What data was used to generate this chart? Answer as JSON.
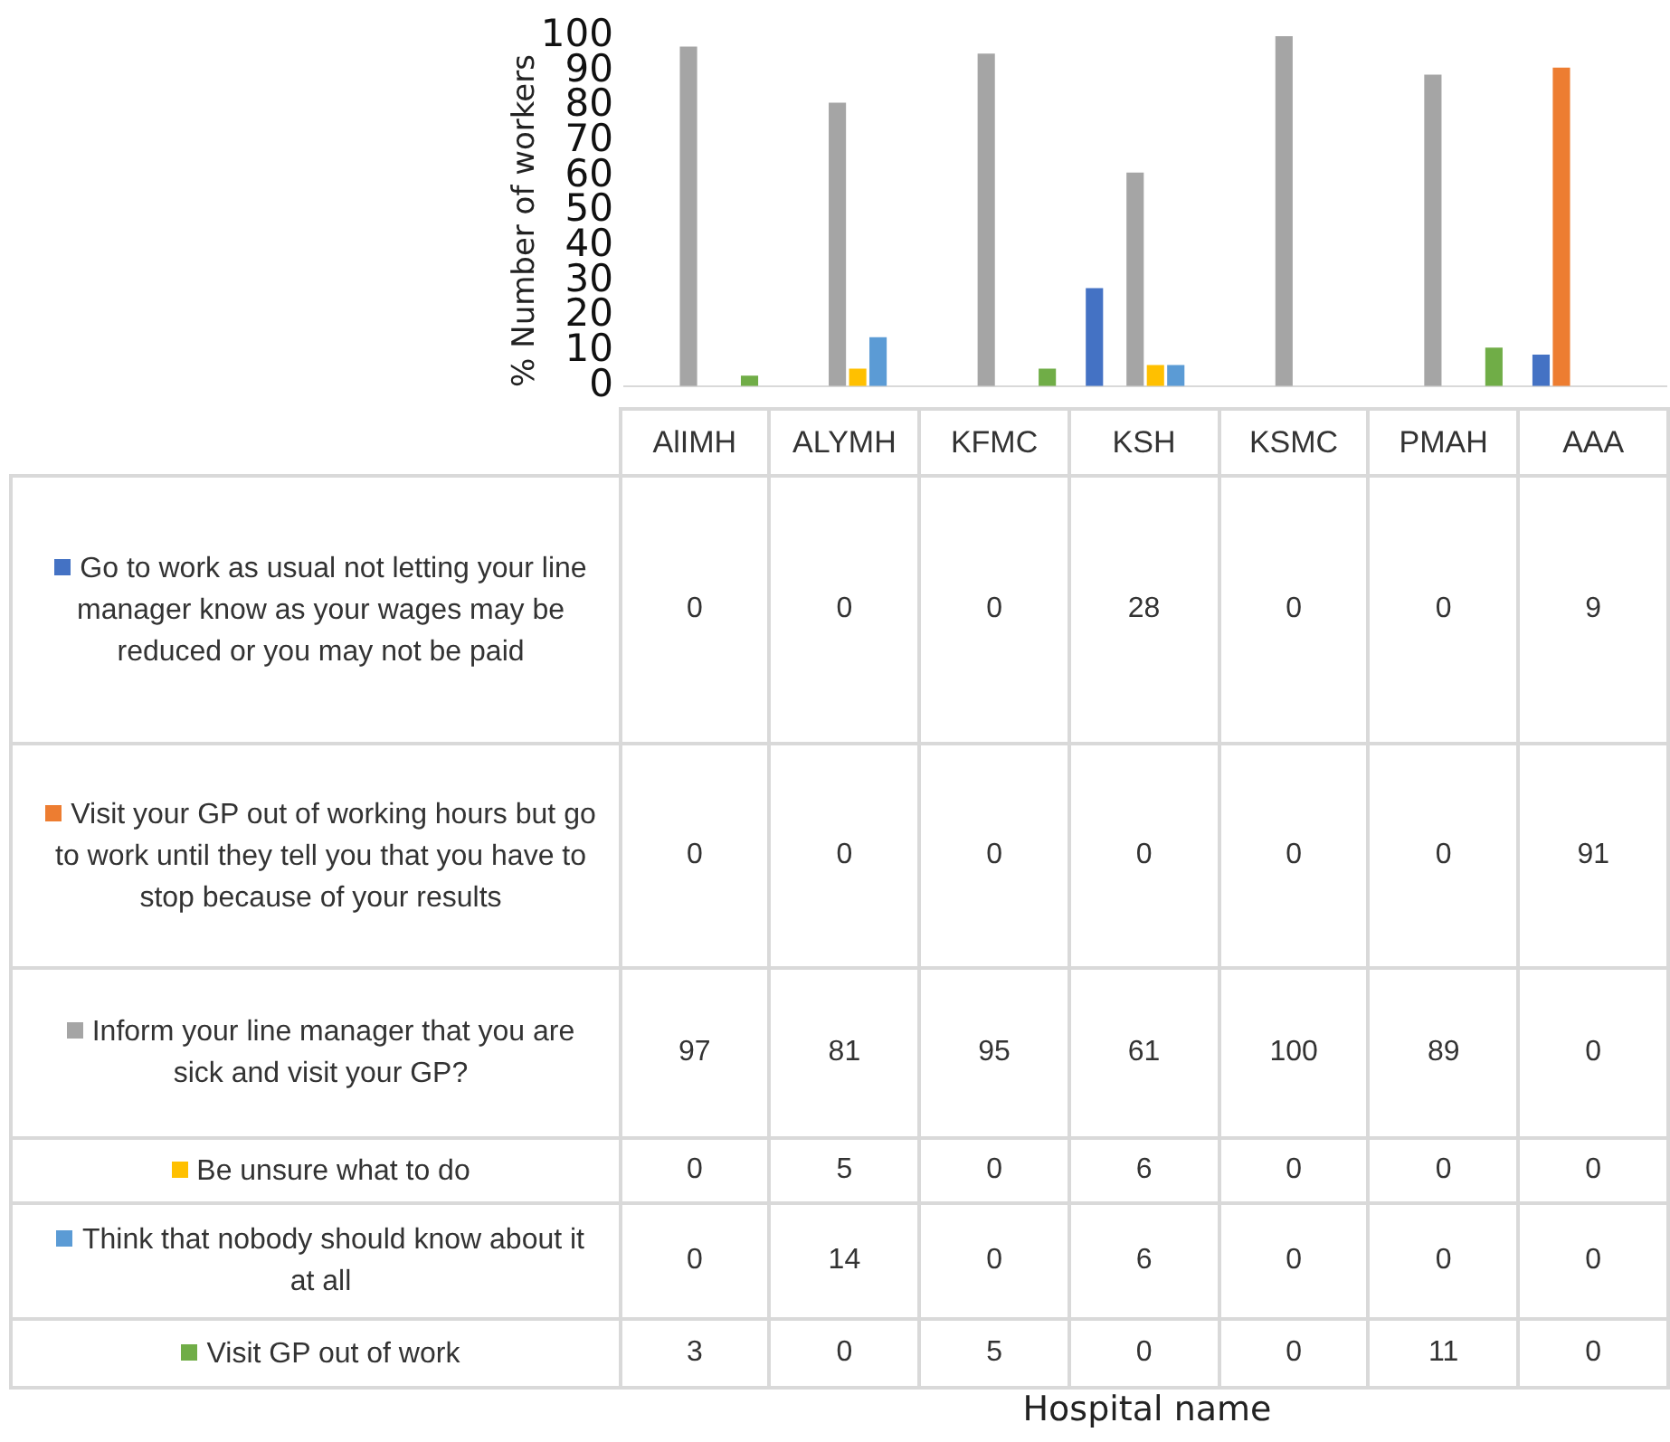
{
  "chart_data": {
    "type": "bar",
    "ylabel": "% Number of workers",
    "annotations": [
      "Hospital name"
    ],
    "categories": [
      "AlIMH",
      "ALYMH",
      "KFMC",
      "KSH",
      "KSMC",
      "PMAH",
      "AAA"
    ],
    "series": [
      {
        "name": "Go to work as usual not letting your line manager know as your wages may be reduced or you may not be paid",
        "color": "#4472c4",
        "values": [
          0,
          0,
          0,
          28,
          0,
          0,
          9
        ]
      },
      {
        "name": "Visit your GP out of working hours but go to work until they tell you that you have to stop because of your results",
        "color": "#ed7d31",
        "values": [
          0,
          0,
          0,
          0,
          0,
          0,
          91
        ]
      },
      {
        "name": "Inform your line manager that you are sick and visit your GP?",
        "color": "#a5a5a5",
        "values": [
          97,
          81,
          95,
          61,
          100,
          89,
          0
        ]
      },
      {
        "name": "Be unsure what to do",
        "color": "#ffc000",
        "values": [
          0,
          5,
          0,
          6,
          0,
          0,
          0
        ]
      },
      {
        "name": "Think that nobody should know about it at all",
        "color": "#5b9bd5",
        "values": [
          0,
          14,
          0,
          6,
          0,
          0,
          0
        ]
      },
      {
        "name": "Visit GP out of work",
        "color": "#70ad47",
        "values": [
          3,
          0,
          5,
          0,
          0,
          11,
          0
        ]
      }
    ],
    "ylim": [
      0,
      100
    ],
    "yticks": [
      0,
      10,
      20,
      30,
      40,
      50,
      60,
      70,
      80,
      90,
      100
    ],
    "grid": false,
    "legend": "bottom",
    "data_labels": true
  }
}
